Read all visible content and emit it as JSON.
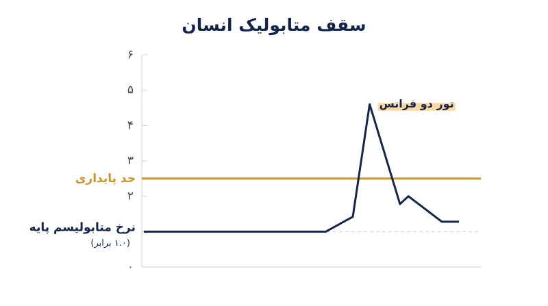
{
  "chart_data": {
    "type": "line",
    "title": "سقف متابولیک انسان",
    "x": [
      0,
      54,
      62,
      67,
      76,
      78.5,
      88.4,
      93.5
    ],
    "series": [
      {
        "color": "#13254a",
        "values": [
          1,
          1,
          1.42,
          4.6,
          1.78,
          2.0,
          1.28,
          1.28
        ]
      }
    ],
    "xlim": [
      0,
      100
    ],
    "ylim": [
      0,
      6
    ],
    "yticks": [
      {
        "value": 0,
        "label": "۰"
      },
      {
        "value": 2,
        "label": "۲"
      },
      {
        "value": 3,
        "label": "۳"
      },
      {
        "value": 4,
        "label": "۴"
      },
      {
        "value": 5,
        "label": "۵"
      },
      {
        "value": 6,
        "label": "۶"
      }
    ],
    "reference_lines": [
      {
        "value": 2.5,
        "label": "حد پایداری",
        "color": "#c8962f",
        "style": "solid"
      },
      {
        "value": 1,
        "label": "نرخ متابولیسم پایه",
        "sublabel": "(۱.۰ برابر)",
        "color": "#cfcfcf",
        "style": "dashed"
      }
    ],
    "annotation": {
      "text": "تور دو فرانس",
      "color": "#fbd9a0"
    }
  }
}
